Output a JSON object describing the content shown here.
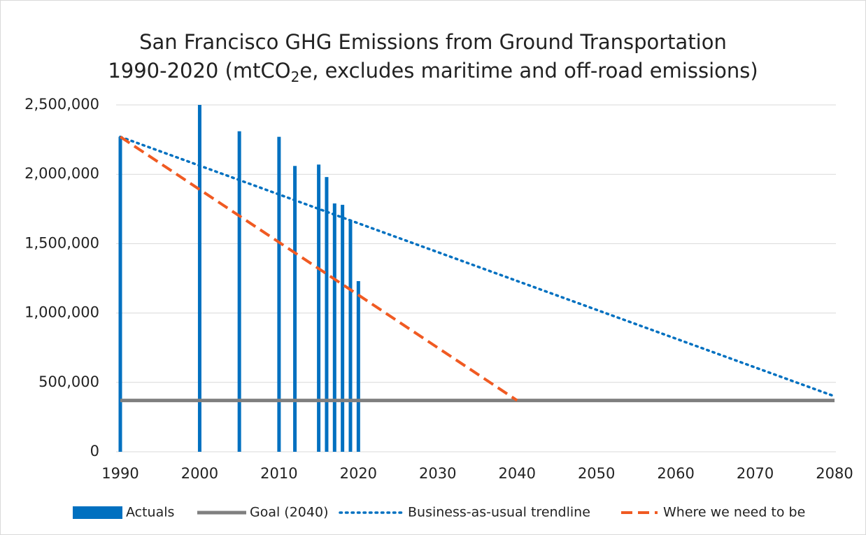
{
  "chart_data": {
    "type": "combo",
    "title": [
      "San Francisco GHG Emissions from Ground Transportation",
      "1990-2020 (mtCO2e, excludes maritime and off-road emissions)"
    ],
    "xlim": [
      1990,
      2080
    ],
    "xticks": [
      1990,
      2000,
      2010,
      2020,
      2030,
      2040,
      2050,
      2060,
      2070,
      2080
    ],
    "ylim": [
      0,
      2500000
    ],
    "yticks": [
      0,
      {
        "value": 500000,
        "label": "500,000"
      },
      {
        "value": 1000000,
        "label": "1,000,000"
      },
      {
        "value": 1500000,
        "label": "1,500,000"
      },
      {
        "value": 2000000,
        "label": "2,000,000"
      },
      {
        "value": 2500000,
        "label": "2,500,000"
      }
    ],
    "grid": true,
    "legend": "bottom",
    "series": [
      {
        "name": "Actuals",
        "type": "bar",
        "color": "#0070c0",
        "x": [
          1990,
          2000,
          2005,
          2010,
          2012,
          2015,
          2016,
          2017,
          2018,
          2019,
          2020
        ],
        "values": [
          2270000,
          2500000,
          2310000,
          2270000,
          2060000,
          2070000,
          1980000,
          1790000,
          1780000,
          1670000,
          1230000
        ]
      },
      {
        "name": "Goal (2040)",
        "type": "line",
        "style": "solid",
        "color": "#7f7f7f",
        "x": [
          1990,
          2080
        ],
        "values": [
          370000,
          370000
        ]
      },
      {
        "name": "Business-as-usual trendline",
        "type": "line",
        "style": "dotted",
        "color": "#0070c0",
        "x": [
          1990,
          2080
        ],
        "values": [
          2270000,
          400000
        ]
      },
      {
        "name": "Where we need to be",
        "type": "line",
        "style": "dashed",
        "color": "#f05a22",
        "x": [
          1990,
          2040
        ],
        "values": [
          2270000,
          370000
        ]
      }
    ]
  }
}
